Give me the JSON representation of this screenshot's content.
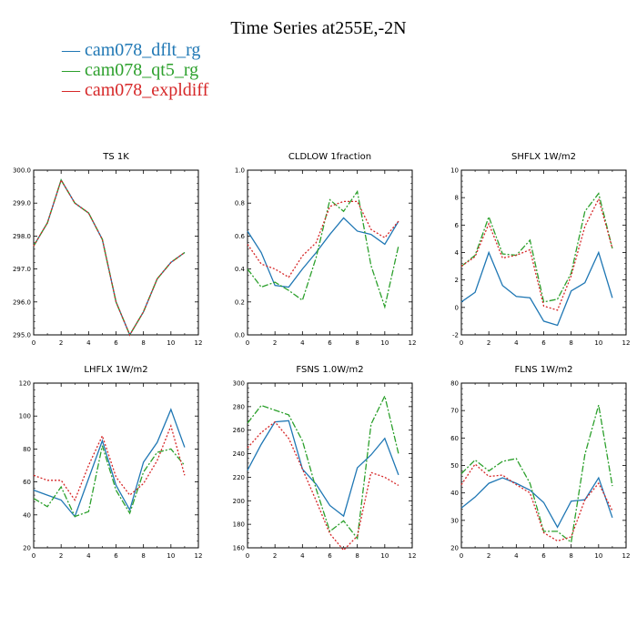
{
  "title": "Time Series at255E,-2N",
  "legend": [
    {
      "label": "cam078_dflt_rg",
      "color": "#1f77b4"
    },
    {
      "label": "cam078_qt5_rg",
      "color": "#2ca02c"
    },
    {
      "label": "cam078_expldiff",
      "color": "#d62728"
    }
  ],
  "chart_data": [
    {
      "type": "line",
      "title": "TS   1K",
      "x": [
        0,
        1,
        2,
        3,
        4,
        5,
        6,
        7,
        8,
        9,
        10,
        11
      ],
      "xlim": [
        0,
        12
      ],
      "xticks": [
        0,
        2,
        4,
        6,
        8,
        10,
        12
      ],
      "ylim": [
        295,
        300
      ],
      "yticks": [
        295.0,
        296.0,
        297.0,
        298.0,
        299.0,
        300.0
      ],
      "ytick_labels": [
        "295.0",
        "296.0",
        "297.0",
        "298.0",
        "299.0",
        "300.0"
      ],
      "series": [
        {
          "name": "cam078_dflt_rg",
          "values": [
            297.7,
            298.4,
            299.7,
            299.0,
            298.7,
            297.9,
            296.0,
            295.0,
            295.7,
            296.7,
            297.2,
            297.5
          ]
        },
        {
          "name": "cam078_qt5_rg",
          "values": [
            297.7,
            298.4,
            299.7,
            299.0,
            298.7,
            297.9,
            296.0,
            295.0,
            295.7,
            296.7,
            297.2,
            297.5
          ]
        },
        {
          "name": "cam078_expldiff",
          "values": [
            297.7,
            298.4,
            299.7,
            299.0,
            298.7,
            297.9,
            296.0,
            295.0,
            295.7,
            296.7,
            297.2,
            297.5
          ]
        }
      ]
    },
    {
      "type": "line",
      "title": "CLDLOW   1fraction",
      "x": [
        0,
        1,
        2,
        3,
        4,
        5,
        6,
        7,
        8,
        9,
        10,
        11
      ],
      "xlim": [
        0,
        12
      ],
      "xticks": [
        0,
        2,
        4,
        6,
        8,
        10,
        12
      ],
      "ylim": [
        0,
        1
      ],
      "yticks": [
        0,
        0.2,
        0.4,
        0.6,
        0.8,
        1.0
      ],
      "ytick_labels": [
        "0.0",
        "0.2",
        "0.4",
        "0.6",
        "0.8",
        "1.0"
      ],
      "series": [
        {
          "name": "cam078_dflt_rg",
          "values": [
            0.63,
            0.5,
            0.3,
            0.29,
            0.4,
            0.5,
            0.61,
            0.71,
            0.63,
            0.61,
            0.55,
            0.69
          ]
        },
        {
          "name": "cam078_qt5_rg",
          "values": [
            0.4,
            0.29,
            0.32,
            0.27,
            0.21,
            0.47,
            0.82,
            0.75,
            0.87,
            0.42,
            0.17,
            0.54
          ]
        },
        {
          "name": "cam078_expldiff",
          "values": [
            0.55,
            0.43,
            0.4,
            0.35,
            0.48,
            0.56,
            0.78,
            0.81,
            0.81,
            0.64,
            0.59,
            0.69
          ]
        }
      ]
    },
    {
      "type": "line",
      "title": "SHFLX   1W/m2",
      "x": [
        0,
        1,
        2,
        3,
        4,
        5,
        6,
        7,
        8,
        9,
        10,
        11
      ],
      "xlim": [
        0,
        12
      ],
      "xticks": [
        0,
        2,
        4,
        6,
        8,
        10,
        12
      ],
      "ylim": [
        -2,
        10
      ],
      "yticks": [
        -2,
        0,
        2,
        4,
        6,
        8,
        10
      ],
      "ytick_labels": [
        "-2",
        "0",
        "2",
        "4",
        "6",
        "8",
        "10"
      ],
      "series": [
        {
          "name": "cam078_dflt_rg",
          "values": [
            0.4,
            1.1,
            4.0,
            1.6,
            0.8,
            0.7,
            -1.0,
            -1.3,
            1.2,
            1.8,
            4.0,
            0.7
          ]
        },
        {
          "name": "cam078_qt5_rg",
          "values": [
            3.0,
            3.8,
            6.6,
            3.9,
            3.8,
            4.9,
            0.4,
            0.6,
            2.5,
            7.0,
            8.3,
            4.3
          ]
        },
        {
          "name": "cam078_expldiff",
          "values": [
            3.0,
            3.7,
            6.1,
            3.6,
            3.8,
            4.2,
            0.1,
            -0.2,
            2.3,
            5.9,
            7.9,
            4.3
          ]
        }
      ]
    },
    {
      "type": "line",
      "title": "LHFLX   1W/m2",
      "x": [
        0,
        1,
        2,
        3,
        4,
        5,
        6,
        7,
        8,
        9,
        10,
        11
      ],
      "xlim": [
        0,
        12
      ],
      "xticks": [
        0,
        2,
        4,
        6,
        8,
        10,
        12
      ],
      "ylim": [
        20,
        120
      ],
      "yticks": [
        20,
        40,
        60,
        80,
        100,
        120
      ],
      "ytick_labels": [
        "20",
        "40",
        "60",
        "80",
        "100",
        "120"
      ],
      "series": [
        {
          "name": "cam078_dflt_rg",
          "values": [
            55,
            52,
            49,
            39,
            62,
            85,
            58,
            43,
            72,
            84,
            104,
            81
          ]
        },
        {
          "name": "cam078_qt5_rg",
          "values": [
            50,
            45,
            57,
            39,
            42,
            82,
            55,
            41,
            66,
            78,
            80,
            70
          ]
        },
        {
          "name": "cam078_expldiff",
          "values": [
            64,
            61,
            61,
            49,
            70,
            88,
            63,
            52,
            59,
            73,
            94,
            64
          ]
        }
      ]
    },
    {
      "type": "line",
      "title": "FSNS   1.0W/m2",
      "x": [
        0,
        1,
        2,
        3,
        4,
        5,
        6,
        7,
        8,
        9,
        10,
        11
      ],
      "xlim": [
        0,
        12
      ],
      "xticks": [
        0,
        2,
        4,
        6,
        8,
        10,
        12
      ],
      "ylim": [
        160,
        300
      ],
      "yticks": [
        160,
        180,
        200,
        220,
        240,
        260,
        280,
        300
      ],
      "ytick_labels": [
        "160",
        "180",
        "200",
        "220",
        "240",
        "260",
        "280",
        "300"
      ],
      "series": [
        {
          "name": "cam078_dflt_rg",
          "values": [
            226,
            248,
            267,
            268,
            227,
            214,
            196,
            187,
            228,
            239,
            253,
            222
          ]
        },
        {
          "name": "cam078_qt5_rg",
          "values": [
            266,
            281,
            277,
            273,
            251,
            210,
            174,
            183,
            168,
            265,
            289,
            240
          ]
        },
        {
          "name": "cam078_expldiff",
          "values": [
            245,
            258,
            267,
            253,
            227,
            200,
            172,
            158,
            170,
            224,
            220,
            213
          ]
        }
      ]
    },
    {
      "type": "line",
      "title": "FLNS   1W/m2",
      "x": [
        0,
        1,
        2,
        3,
        4,
        5,
        6,
        7,
        8,
        9,
        10,
        11
      ],
      "xlim": [
        0,
        12
      ],
      "xticks": [
        0,
        2,
        4,
        6,
        8,
        10,
        12
      ],
      "ylim": [
        20,
        80
      ],
      "yticks": [
        20,
        30,
        40,
        50,
        60,
        70,
        80
      ],
      "ytick_labels": [
        "20",
        "30",
        "40",
        "50",
        "60",
        "70",
        "80"
      ],
      "series": [
        {
          "name": "cam078_dflt_rg",
          "values": [
            34.5,
            38.5,
            43.5,
            45.5,
            43.5,
            41.0,
            36.5,
            27.5,
            37.0,
            37.5,
            45.5,
            31.0
          ]
        },
        {
          "name": "cam078_qt5_rg",
          "values": [
            47.0,
            52.0,
            48.0,
            51.5,
            52.5,
            43.5,
            26.0,
            26.0,
            22.0,
            54.0,
            72.0,
            42.5
          ]
        },
        {
          "name": "cam078_expldiff",
          "values": [
            43.0,
            50.5,
            46.0,
            46.5,
            43.0,
            40.0,
            25.5,
            22.5,
            24.0,
            37.5,
            43.5,
            33.5
          ]
        }
      ]
    }
  ]
}
